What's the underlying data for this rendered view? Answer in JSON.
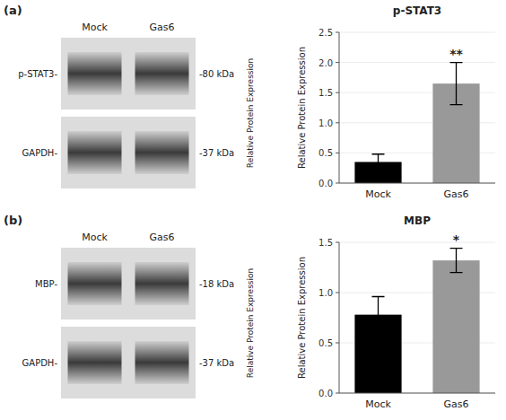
{
  "chart_data": [
    {
      "type": "bar",
      "title": "p-STAT3",
      "panel_label": "(a)",
      "categories": [
        "Mock",
        "Gas6"
      ],
      "values": [
        0.35,
        1.65
      ],
      "errors": [
        0.13,
        0.35
      ],
      "colors": [
        "#000000",
        "#999999"
      ],
      "ylim": [
        0,
        2.5
      ],
      "yticks": [
        {
          "value": 0.0,
          "label": "0.0"
        },
        0.5,
        {
          "value": 1.0,
          "label": "1.0"
        },
        1.5,
        {
          "value": 2.0,
          "label": "2.0"
        },
        2.5
      ],
      "significance": "**",
      "ylabel": "Relative Protein Expression",
      "blot": {
        "lanes": [
          "Mock",
          "Gas6"
        ],
        "rows": [
          "p-STAT3-",
          "GAPDH-"
        ],
        "sizes": [
          "-80 kDa",
          "-37 kDa"
        ]
      }
    },
    {
      "type": "bar",
      "title": "MBP",
      "panel_label": "(b)",
      "categories": [
        "Mock",
        "Gas6"
      ],
      "values": [
        0.78,
        1.32
      ],
      "errors": [
        0.18,
        0.12
      ],
      "colors": [
        "#000000",
        "#999999"
      ],
      "ylim": [
        0,
        1.5
      ],
      "yticks": [
        {
          "value": 0.0,
          "label": "0.0"
        },
        0.5,
        {
          "value": 1.0,
          "label": "1.0"
        },
        1.5
      ],
      "significance": "*",
      "ylabel": "Relative Protein Expression",
      "blot": {
        "lanes": [
          "Mock",
          "Gas6"
        ],
        "rows": [
          "MBP-",
          "GAPDH-"
        ],
        "sizes": [
          "-18 kDa",
          "-37 kDa"
        ]
      }
    }
  ]
}
